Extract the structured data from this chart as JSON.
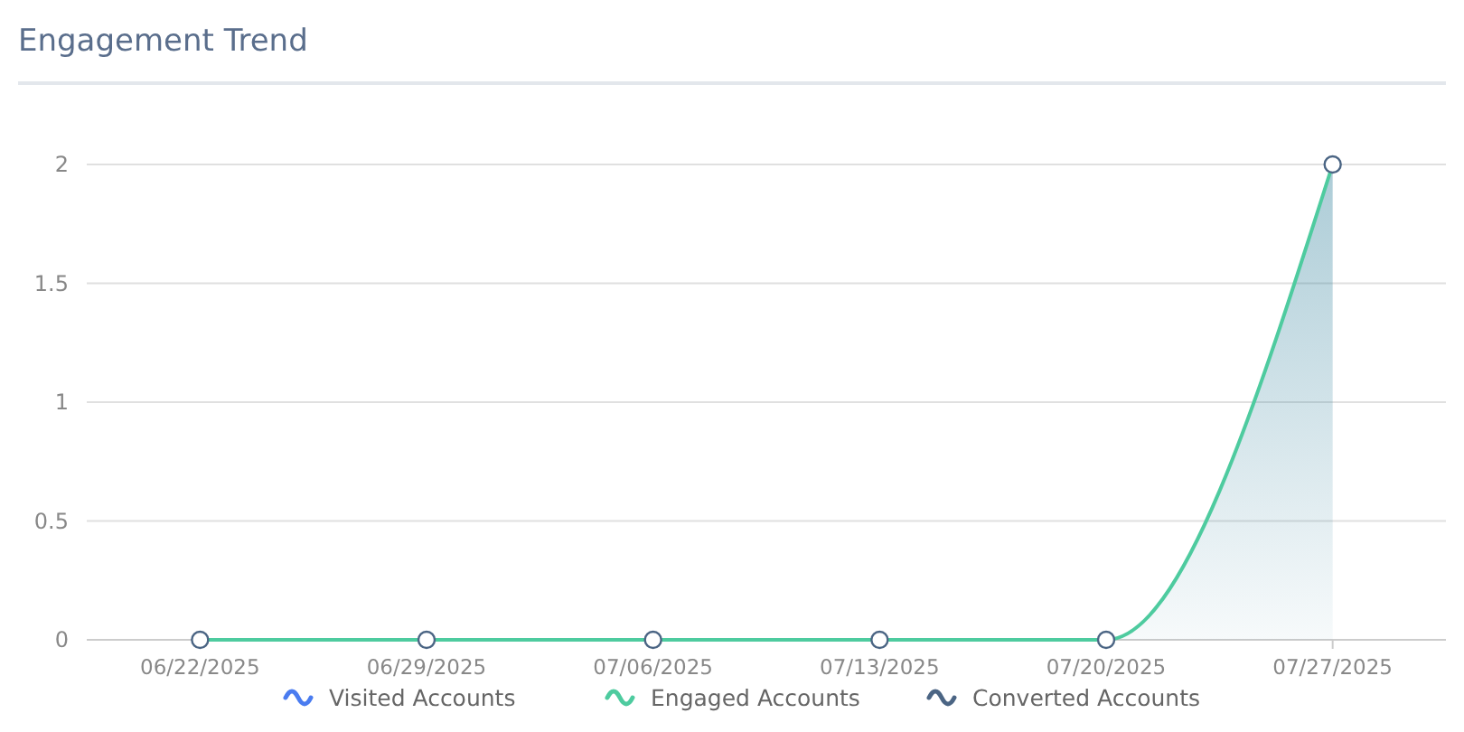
{
  "chart_data": {
    "type": "area",
    "title": "Engagement Trend",
    "categories": [
      "06/22/2025",
      "06/29/2025",
      "07/06/2025",
      "07/13/2025",
      "07/20/2025",
      "07/27/2025"
    ],
    "series": [
      {
        "name": "Visited Accounts",
        "color": "#4a7cf0",
        "values": [
          null,
          null,
          null,
          null,
          null,
          null
        ]
      },
      {
        "name": "Engaged Accounts",
        "color": "#4ecb9f",
        "values": [
          0,
          0,
          0,
          0,
          0,
          2
        ]
      },
      {
        "name": "Converted Accounts",
        "type": "scatter",
        "color": "#4b6584",
        "marker": "circle",
        "values": [
          0,
          0,
          0,
          0,
          0,
          2
        ]
      }
    ],
    "ylim": [
      0,
      2
    ],
    "yticks": [
      0,
      0.5,
      1,
      1.5,
      2
    ],
    "grid": "y",
    "legend": "bottom"
  }
}
